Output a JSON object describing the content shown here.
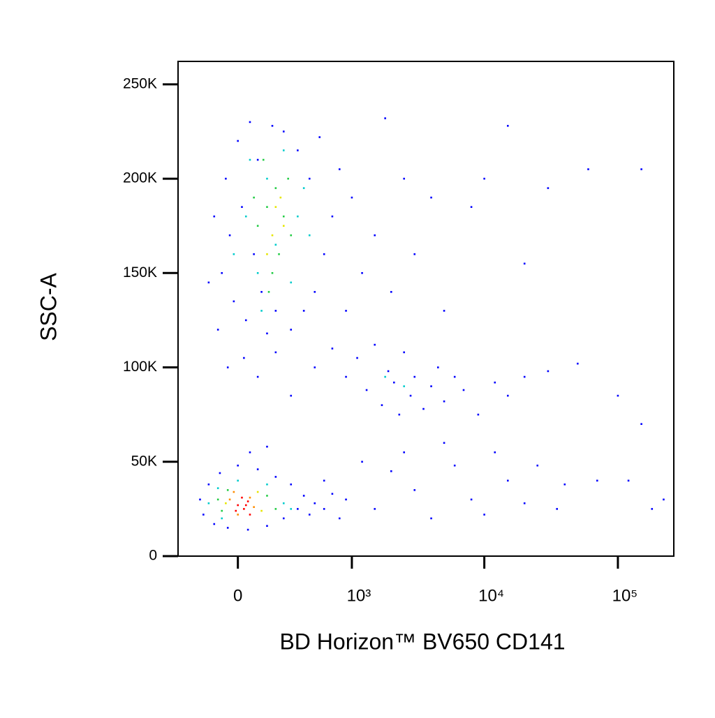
{
  "chart_data": {
    "type": "scatter",
    "xlabel": "BD Horizon™ BV650 CD141",
    "ylabel": "SSC-A",
    "xscale": "biexponential",
    "xlim": [
      -350,
      262143
    ],
    "ylim": [
      0,
      262143
    ],
    "xticks": [
      0,
      {
        "value": 1000,
        "label": "10³"
      },
      {
        "value": 10000,
        "label": "10⁴"
      },
      {
        "value": 100000,
        "label": "10⁵"
      }
    ],
    "yticks": [
      0,
      {
        "value": 50000,
        "label": "50K"
      },
      {
        "value": 100000,
        "label": "100K"
      },
      {
        "value": 150000,
        "label": "150K"
      },
      {
        "value": 200000,
        "label": "200K"
      },
      {
        "value": 250000,
        "label": "250K"
      }
    ],
    "series": [
      {
        "color": "#0000ff",
        "x": [
          -80,
          -60,
          -40,
          -20,
          0,
          20,
          40,
          60,
          80,
          100,
          120,
          150,
          180,
          200,
          250,
          300,
          350,
          400,
          450,
          500,
          550,
          600,
          700,
          800,
          900,
          1000,
          1200,
          1500,
          1800,
          2000,
          2500,
          3000,
          4000,
          5000,
          8000,
          10000,
          15000,
          30000,
          60000,
          150000,
          20000,
          -150,
          -120,
          -100,
          30,
          100,
          200,
          300,
          -50,
          500,
          700,
          900,
          1100,
          1300,
          1500,
          1700,
          1900,
          2100,
          2300,
          2500,
          2800,
          3000,
          3500,
          4000,
          4500,
          5000,
          6000,
          7000,
          9000,
          12000,
          15000,
          20000,
          30000,
          50000,
          100000,
          150000,
          600,
          900,
          1200,
          1500,
          2000,
          2500,
          3000,
          4000,
          5000,
          6000,
          8000,
          10000,
          12000,
          15000,
          20000,
          25000,
          35000,
          40000,
          70000,
          120000,
          180000,
          220000,
          -200,
          -180,
          -150,
          -120,
          -90,
          -50,
          0,
          50,
          100,
          150,
          200,
          250,
          300,
          350,
          400,
          450,
          500,
          600,
          700,
          800,
          60,
          150
        ],
        "y": [
          150000,
          200000,
          170000,
          135000,
          220000,
          185000,
          125000,
          230000,
          160000,
          210000,
          140000,
          118000,
          228000,
          130000,
          225000,
          120000,
          215000,
          130000,
          200000,
          140000,
          222000,
          160000,
          180000,
          205000,
          130000,
          190000,
          150000,
          170000,
          232000,
          140000,
          200000,
          160000,
          190000,
          130000,
          185000,
          200000,
          228000,
          195000,
          205000,
          205000,
          155000,
          145000,
          180000,
          120000,
          105000,
          95000,
          108000,
          85000,
          100000,
          100000,
          110000,
          95000,
          105000,
          88000,
          112000,
          80000,
          98000,
          92000,
          75000,
          108000,
          85000,
          95000,
          78000,
          90000,
          100000,
          82000,
          95000,
          88000,
          75000,
          92000,
          85000,
          95000,
          98000,
          102000,
          85000,
          70000,
          40000,
          30000,
          50000,
          25000,
          45000,
          55000,
          35000,
          20000,
          60000,
          48000,
          30000,
          22000,
          55000,
          40000,
          28000,
          48000,
          25000,
          38000,
          40000,
          40000,
          25000,
          30000,
          30000,
          22000,
          38000,
          17000,
          44000,
          15000,
          48000,
          14000,
          46000,
          16000,
          42000,
          20000,
          38000,
          25000,
          32000,
          22000,
          28000,
          25000,
          33000,
          20000,
          55000,
          58000
        ]
      },
      {
        "color": "#00cccc",
        "x": [
          40,
          100,
          150,
          200,
          250,
          300,
          350,
          400,
          -20,
          60,
          120,
          450,
          -150,
          -100,
          0,
          150,
          250,
          300,
          -80,
          1800,
          2500
        ],
        "y": [
          180000,
          150000,
          200000,
          165000,
          215000,
          145000,
          180000,
          195000,
          160000,
          210000,
          130000,
          170000,
          28000,
          36000,
          40000,
          38000,
          28000,
          25000,
          20000,
          95000,
          90000
        ]
      },
      {
        "color": "#22cc44",
        "x": [
          100,
          150,
          200,
          220,
          180,
          250,
          280,
          130,
          300,
          80,
          160,
          -100,
          -50,
          150,
          200,
          -80
        ],
        "y": [
          175000,
          185000,
          195000,
          160000,
          150000,
          180000,
          200000,
          210000,
          170000,
          190000,
          140000,
          30000,
          35000,
          32000,
          25000,
          24000
        ]
      },
      {
        "color": "#e6e600",
        "x": [
          200,
          180,
          230,
          150,
          250,
          -60,
          100,
          120
        ],
        "y": [
          185000,
          170000,
          190000,
          160000,
          175000,
          28000,
          34000,
          24000
        ]
      },
      {
        "color": "#ff8c00",
        "x": [
          -40,
          60,
          0,
          80,
          -20
        ],
        "y": [
          30000,
          31000,
          22000,
          26000,
          34000
        ]
      },
      {
        "color": "#ff0000",
        "x": [
          0,
          30,
          50,
          -10,
          20,
          60,
          40
        ],
        "y": [
          27000,
          25000,
          29000,
          24000,
          31000,
          22000,
          27000
        ]
      }
    ]
  }
}
